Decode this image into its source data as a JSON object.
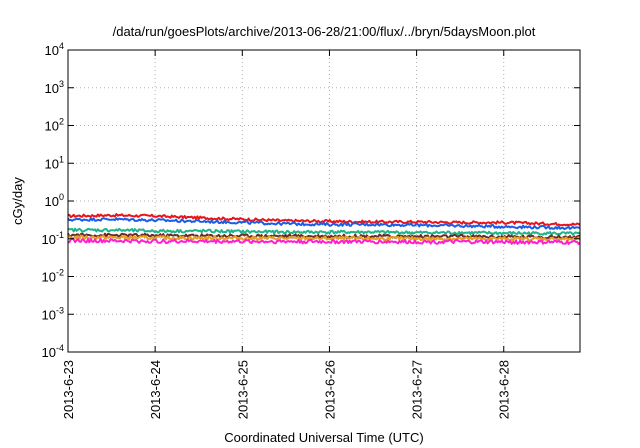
{
  "chart_data": {
    "type": "line",
    "title": "/data/run/goesPlots/archive/2013-06-28/21:00/flux/../bryn/5daysMoon.plot",
    "xlabel": "Coordinated Universal Time (UTC)",
    "ylabel": "cGy/day",
    "yscale": "log",
    "grid": true,
    "legend": "none",
    "x_tick_labels": [
      "2013-6-23",
      "2013-6-24",
      "2013-6-25",
      "2013-6-26",
      "2013-6-27",
      "2013-6-28"
    ],
    "x_ticks": [
      "2013-06-23",
      "2013-06-24",
      "2013-06-25",
      "2013-06-26",
      "2013-06-27",
      "2013-06-28"
    ],
    "xlim": [
      "2013-06-23",
      "2013-06-28T21:00"
    ],
    "y_tick_bases": [
      "10",
      "10",
      "10",
      "10",
      "10",
      "10",
      "10",
      "10",
      "10"
    ],
    "y_tick_exponents": [
      "-4",
      "-3",
      "-2",
      "-1",
      "0",
      "1",
      "2",
      "3",
      "4"
    ],
    "y_ticks": [
      0.0001,
      0.001,
      0.01,
      0.1,
      1,
      10,
      100,
      1000,
      10000
    ],
    "ylim": [
      0.0001,
      10000
    ],
    "series": [
      {
        "color": "#e8141b",
        "x": [
          "2013-06-23",
          "2013-06-23T12:00",
          "2013-06-24",
          "2013-06-24T12:00",
          "2013-06-25",
          "2013-06-25T12:00",
          "2013-06-26",
          "2013-06-26T12:00",
          "2013-06-27",
          "2013-06-27T12:00",
          "2013-06-28",
          "2013-06-28T12:00",
          "2013-06-28T21:00"
        ],
        "values": [
          0.4,
          0.42,
          0.4,
          0.36,
          0.33,
          0.3,
          0.29,
          0.28,
          0.28,
          0.27,
          0.27,
          0.25,
          0.24
        ]
      },
      {
        "color": "#1a5ee8",
        "x": [
          "2013-06-23",
          "2013-06-23T12:00",
          "2013-06-24",
          "2013-06-24T12:00",
          "2013-06-25",
          "2013-06-25T12:00",
          "2013-06-26",
          "2013-06-26T12:00",
          "2013-06-27",
          "2013-06-27T12:00",
          "2013-06-28",
          "2013-06-28T12:00",
          "2013-06-28T21:00"
        ],
        "values": [
          0.32,
          0.33,
          0.31,
          0.29,
          0.27,
          0.25,
          0.24,
          0.24,
          0.23,
          0.22,
          0.21,
          0.2,
          0.19
        ]
      },
      {
        "color": "#1fb38a",
        "x": [
          "2013-06-23",
          "2013-06-23T12:00",
          "2013-06-24",
          "2013-06-24T12:00",
          "2013-06-25",
          "2013-06-25T12:00",
          "2013-06-26",
          "2013-06-26T12:00",
          "2013-06-27",
          "2013-06-27T12:00",
          "2013-06-28",
          "2013-06-28T12:00",
          "2013-06-28T21:00"
        ],
        "values": [
          0.17,
          0.17,
          0.16,
          0.16,
          0.155,
          0.15,
          0.15,
          0.15,
          0.145,
          0.145,
          0.14,
          0.14,
          0.135
        ]
      },
      {
        "color": "#6b2a2a",
        "x": [
          "2013-06-23",
          "2013-06-23T12:00",
          "2013-06-24",
          "2013-06-24T12:00",
          "2013-06-25",
          "2013-06-25T12:00",
          "2013-06-26",
          "2013-06-26T12:00",
          "2013-06-27",
          "2013-06-27T12:00",
          "2013-06-28",
          "2013-06-28T12:00",
          "2013-06-28T21:00"
        ],
        "values": [
          0.125,
          0.124,
          0.122,
          0.12,
          0.12,
          0.118,
          0.117,
          0.117,
          0.115,
          0.115,
          0.113,
          0.112,
          0.11
        ]
      },
      {
        "color": "#e6a01e",
        "x": [
          "2013-06-23",
          "2013-06-23T12:00",
          "2013-06-24",
          "2013-06-24T12:00",
          "2013-06-25",
          "2013-06-25T12:00",
          "2013-06-26",
          "2013-06-26T12:00",
          "2013-06-27",
          "2013-06-27T12:00",
          "2013-06-28",
          "2013-06-28T12:00",
          "2013-06-28T21:00"
        ],
        "values": [
          0.11,
          0.108,
          0.106,
          0.105,
          0.104,
          0.103,
          0.102,
          0.102,
          0.101,
          0.1,
          0.1,
          0.099,
          0.098
        ]
      },
      {
        "color": "#ff1fd0",
        "x": [
          "2013-06-23",
          "2013-06-23T12:00",
          "2013-06-24",
          "2013-06-24T12:00",
          "2013-06-25",
          "2013-06-25T12:00",
          "2013-06-26",
          "2013-06-26T12:00",
          "2013-06-27",
          "2013-06-27T12:00",
          "2013-06-28",
          "2013-06-28T12:00",
          "2013-06-28T21:00"
        ],
        "values": [
          0.09,
          0.088,
          0.086,
          0.086,
          0.085,
          0.085,
          0.084,
          0.084,
          0.083,
          0.083,
          0.082,
          0.081,
          0.08
        ]
      }
    ]
  }
}
